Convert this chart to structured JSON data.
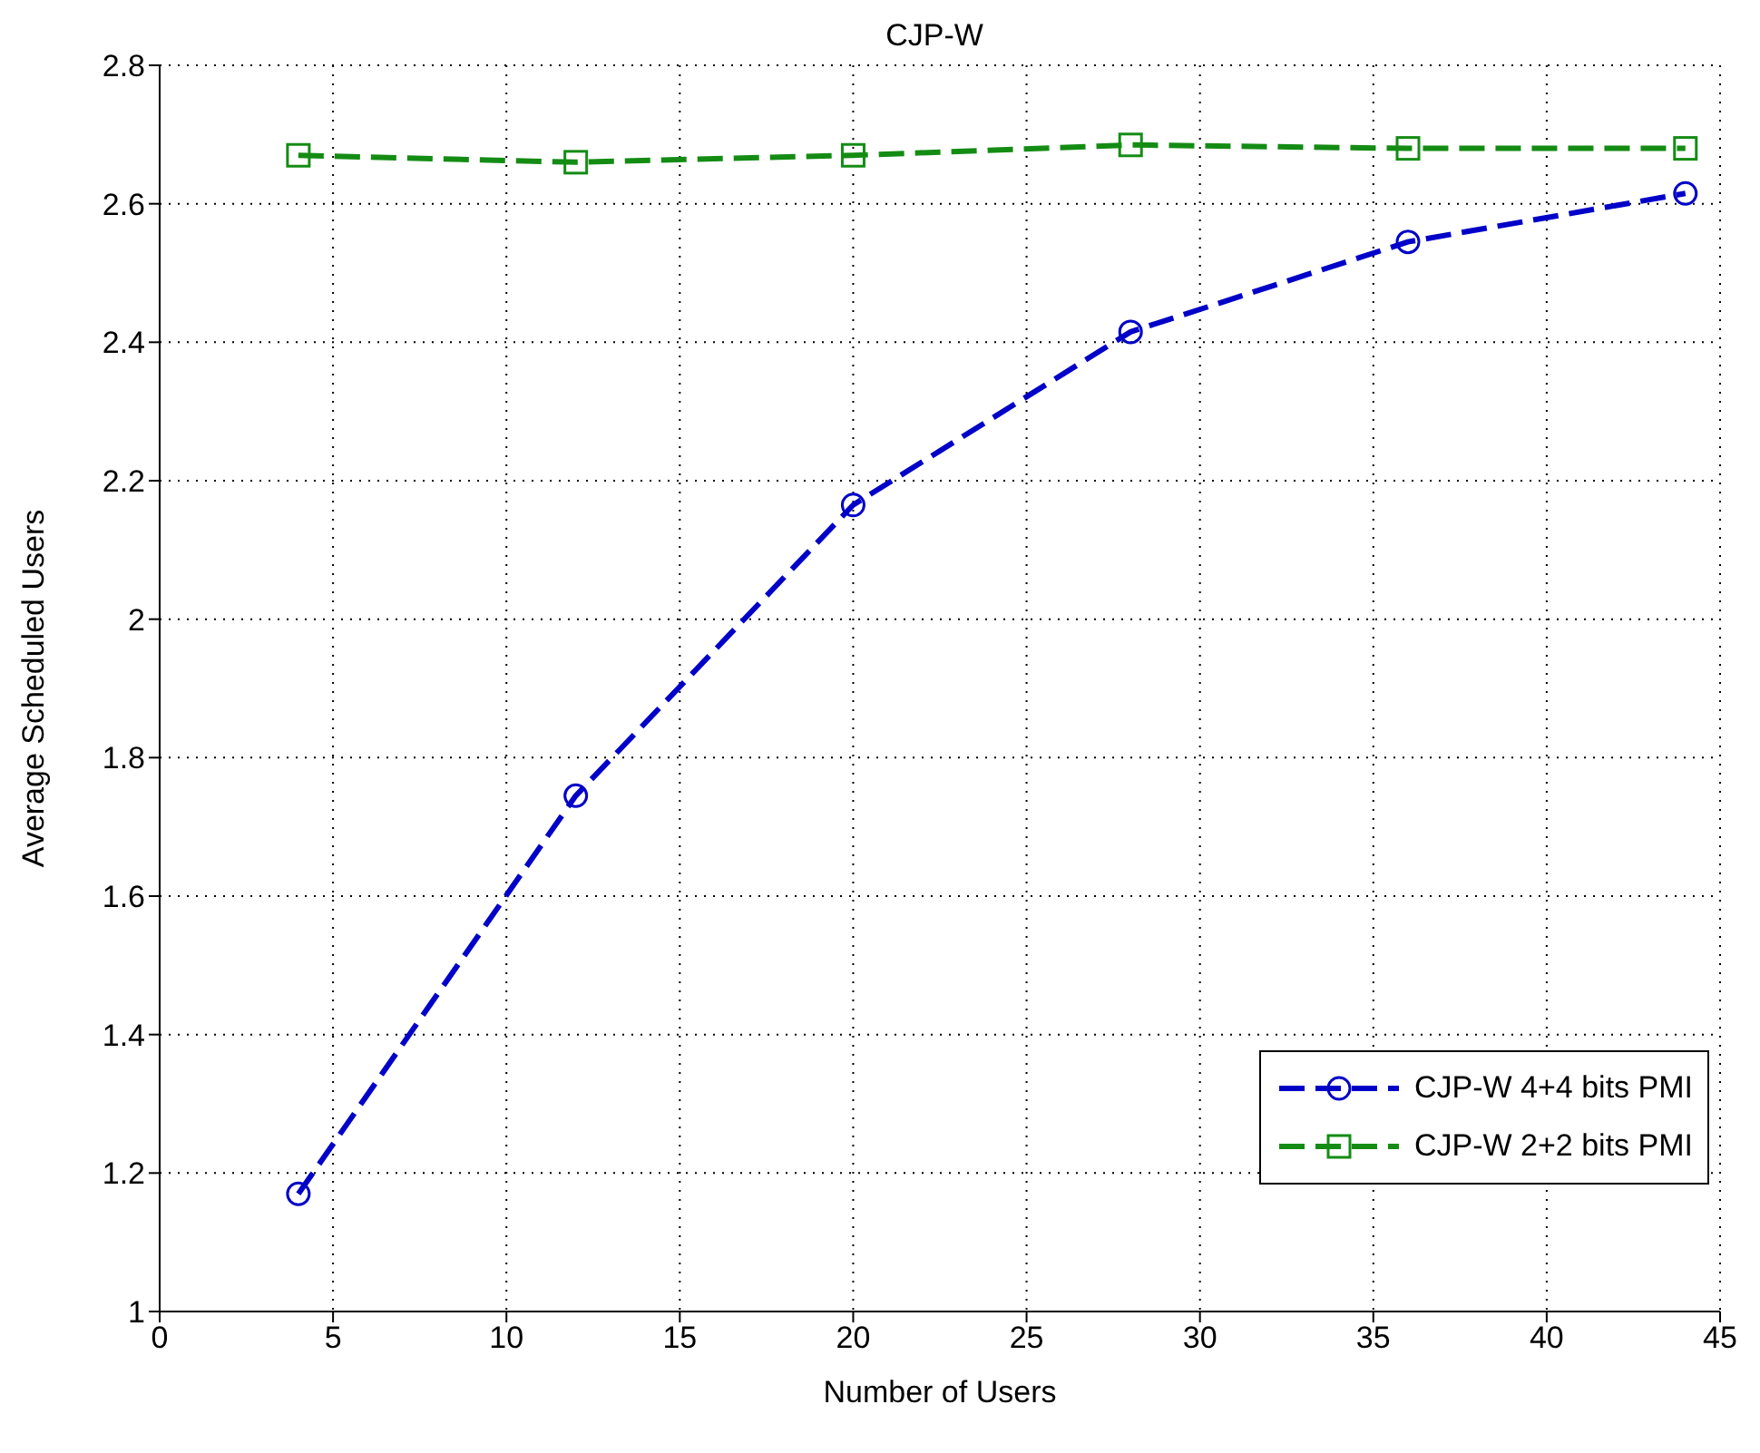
{
  "chart_data": {
    "type": "line",
    "title": "CJP-W",
    "xlabel": "Number of Users",
    "ylabel": "Average Scheduled Users",
    "x": [
      4,
      12,
      20,
      28,
      36,
      44
    ],
    "series": [
      {
        "name": "CJP-W 4+4 bits PMI",
        "color": "#0000c8",
        "marker": "circle",
        "values": [
          1.17,
          1.745,
          2.165,
          2.415,
          2.545,
          2.615
        ]
      },
      {
        "name": "CJP-W 2+2 bits PMI",
        "color": "#148c14",
        "marker": "square",
        "values": [
          2.67,
          2.66,
          2.67,
          2.685,
          2.68,
          2.68
        ]
      }
    ],
    "xlim": [
      0,
      45
    ],
    "xticks": [
      0,
      5,
      10,
      15,
      20,
      25,
      30,
      35,
      40,
      45
    ],
    "ylim": [
      1,
      2.8
    ],
    "yticks": [
      1,
      1.2,
      1.4,
      1.6,
      1.8,
      2,
      2.2,
      2.4,
      2.6,
      2.8
    ],
    "grid": true,
    "legend": "bottom right",
    "line_style": "dashed"
  }
}
